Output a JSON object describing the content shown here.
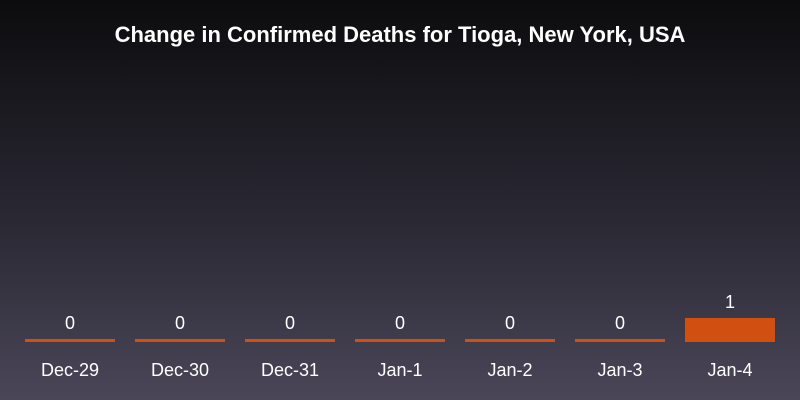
{
  "chart_data": {
    "type": "bar",
    "title": "Change in Confirmed Deaths for Tioga, New York, USA",
    "categories": [
      "Dec-29",
      "Dec-30",
      "Dec-31",
      "Jan-1",
      "Jan-2",
      "Jan-3",
      "Jan-4"
    ],
    "values": [
      0,
      0,
      0,
      0,
      0,
      0,
      1
    ],
    "xlabel": "",
    "ylabel": "",
    "ylim": [
      0,
      1
    ],
    "grid": false,
    "bar_color": "#d14f10"
  }
}
